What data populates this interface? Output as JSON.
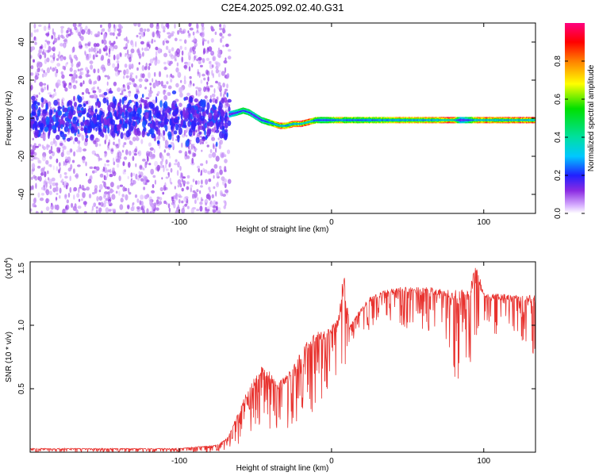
{
  "title": "C2E4.2025.092.02.40.G31",
  "colors": {
    "signal": "#e8322e",
    "noise": "#8a2be2",
    "axis": "#000000"
  },
  "chart_data": [
    {
      "type": "heatmap",
      "title": "C2E4.2025.092.02.40.G31",
      "xlabel": "Height of straight line (km)",
      "ylabel": "Frequency (Hz)",
      "xlim": [
        -198,
        134
      ],
      "ylim": [
        -50,
        50
      ],
      "x_ticks": [
        -100,
        0,
        100
      ],
      "x_tick_labels": [
        "-100",
        "0",
        "100"
      ],
      "y_ticks": [
        -40,
        -20,
        0,
        20,
        40
      ],
      "y_tick_labels": [
        "-40",
        "-20",
        "0",
        "20",
        "40"
      ],
      "colorbar": {
        "label": "Normalized spectral amplitude",
        "range": [
          0,
          1
        ],
        "ticks": [
          0.0,
          0.2,
          0.4,
          0.6,
          0.8
        ],
        "tick_labels": [
          "0.0",
          "0.2",
          "0.4",
          "0.6",
          "0.8"
        ],
        "colormap": "rainbow (violet-blue-cyan-green-yellow-red-magenta)"
      },
      "noise_region": {
        "x_range": [
          -198,
          -67
        ],
        "band_center_hz": 0,
        "band_halfwidth_hz": 8
      },
      "signal_track": {
        "x": [
          -67,
          -62,
          -58,
          -54,
          -50,
          -46,
          -42,
          -38,
          -34,
          -30,
          -25,
          -20,
          -15,
          -10,
          -5,
          0,
          5,
          10,
          20,
          30,
          40,
          50,
          60,
          70,
          80,
          85,
          90,
          95,
          100,
          110,
          120,
          134
        ],
        "freq_hz": [
          2,
          3,
          4,
          3,
          1,
          -1,
          -2,
          -3,
          -4,
          -4,
          -3,
          -3,
          -2,
          -1,
          -1,
          -1,
          -1,
          -1,
          -1,
          -1,
          -1,
          -1,
          -1,
          -1,
          -1,
          -1,
          -1,
          -1,
          -1,
          -1,
          -1,
          -1
        ],
        "amplitude": [
          0.3,
          0.45,
          0.55,
          0.5,
          0.4,
          0.5,
          0.55,
          0.7,
          0.85,
          0.75,
          0.8,
          0.9,
          0.9,
          0.6,
          0.5,
          0.6,
          0.7,
          0.65,
          0.6,
          0.65,
          0.7,
          0.75,
          0.75,
          0.8,
          0.95,
          0.3,
          0.5,
          0.8,
          0.85,
          0.8,
          0.85,
          0.85
        ]
      }
    },
    {
      "type": "line",
      "title": "",
      "xlabel": "Height of straight line (km)",
      "ylabel": "SNR (10 * v/v)",
      "y_multiplier_label": "(x10",
      "y_multiplier_exp": "4",
      "y_multiplier_close": ")",
      "xlim": [
        -198,
        134
      ],
      "ylim": [
        0,
        1.5
      ],
      "x_ticks": [
        -100,
        0,
        100
      ],
      "x_tick_labels": [
        "-100",
        "0",
        "100"
      ],
      "y_ticks": [
        0.5,
        1.0,
        1.5
      ],
      "y_tick_labels": [
        "0.5",
        "1.0",
        "1.5"
      ],
      "series": [
        {
          "color": "#e8322e",
          "envelope_x": [
            -198,
            -150,
            -100,
            -75,
            -68,
            -62,
            -55,
            -45,
            -35,
            -25,
            -18,
            -10,
            -5,
            0,
            5,
            8,
            12,
            18,
            25,
            35,
            45,
            55,
            65,
            75,
            80,
            85,
            90,
            95,
            100,
            110,
            120,
            134
          ],
          "envelope_upper": [
            0.03,
            0.03,
            0.03,
            0.06,
            0.12,
            0.3,
            0.5,
            0.7,
            0.55,
            0.68,
            0.85,
            0.95,
            0.95,
            1.0,
            1.1,
            1.45,
            1.0,
            1.12,
            1.22,
            1.28,
            1.3,
            1.3,
            1.3,
            1.28,
            1.28,
            1.28,
            1.28,
            1.5,
            1.25,
            1.25,
            1.24,
            1.24
          ],
          "envelope_lower": [
            0.0,
            0.0,
            0.0,
            0.0,
            0.02,
            0.05,
            0.1,
            0.12,
            0.15,
            0.2,
            0.25,
            0.35,
            0.45,
            0.55,
            0.6,
            0.2,
            0.8,
            0.9,
            0.95,
            1.05,
            1.0,
            0.95,
            0.95,
            0.9,
            0.6,
            0.4,
            0.6,
            0.8,
            1.0,
            0.9,
            0.95,
            0.75
          ]
        }
      ]
    }
  ]
}
